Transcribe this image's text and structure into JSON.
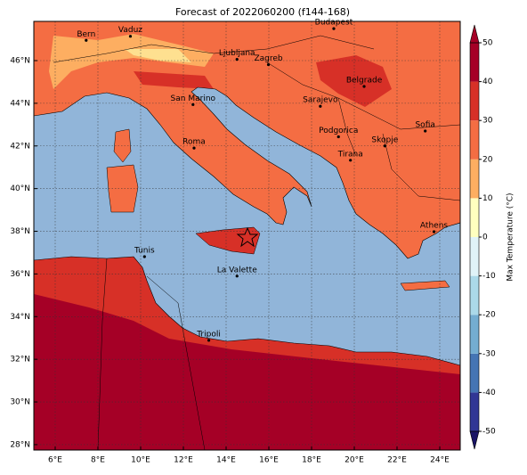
{
  "title": "Forecast of 2022060200 (f144-168)",
  "map": {
    "lon_ticks": [
      {
        "value": 6,
        "label": "6°E"
      },
      {
        "value": 8,
        "label": "8°E"
      },
      {
        "value": 10,
        "label": "10°E"
      },
      {
        "value": 12,
        "label": "12°E"
      },
      {
        "value": 14,
        "label": "14°E"
      },
      {
        "value": 16,
        "label": "16°E"
      },
      {
        "value": 18,
        "label": "18°E"
      },
      {
        "value": 20,
        "label": "20°E"
      },
      {
        "value": 22,
        "label": "22°E"
      },
      {
        "value": 24,
        "label": "24°E"
      }
    ],
    "lat_ticks": [
      {
        "value": 28,
        "label": "28°N"
      },
      {
        "value": 30,
        "label": "30°N"
      },
      {
        "value": 32,
        "label": "32°N"
      },
      {
        "value": 34,
        "label": "34°N"
      },
      {
        "value": 36,
        "label": "36°N"
      },
      {
        "value": 38,
        "label": "38°N"
      },
      {
        "value": 40,
        "label": "40°N"
      },
      {
        "value": 42,
        "label": "42°N"
      },
      {
        "value": 44,
        "label": "44°N"
      },
      {
        "value": 46,
        "label": "46°N"
      }
    ],
    "cities": [
      {
        "name": "Bern",
        "lon": 7.45,
        "lat": 46.95
      },
      {
        "name": "Vaduz",
        "lon": 9.52,
        "lat": 47.14
      },
      {
        "name": "Budapest",
        "lon": 19.04,
        "lat": 47.5
      },
      {
        "name": "Ljubljana",
        "lon": 14.51,
        "lat": 46.06
      },
      {
        "name": "Zagreb",
        "lon": 15.98,
        "lat": 45.81
      },
      {
        "name": "San Marino",
        "lon": 12.45,
        "lat": 43.94
      },
      {
        "name": "Belgrade",
        "lon": 20.46,
        "lat": 44.79
      },
      {
        "name": "Sarajevo",
        "lon": 18.41,
        "lat": 43.86
      },
      {
        "name": "Roma",
        "lon": 12.5,
        "lat": 41.9
      },
      {
        "name": "Podgorica",
        "lon": 19.26,
        "lat": 42.43
      },
      {
        "name": "Skopje",
        "lon": 21.43,
        "lat": 42.0
      },
      {
        "name": "Sofia",
        "lon": 23.32,
        "lat": 42.7
      },
      {
        "name": "Tirana",
        "lon": 19.82,
        "lat": 41.33
      },
      {
        "name": "Athens",
        "lon": 23.73,
        "lat": 37.98
      },
      {
        "name": "Tunis",
        "lon": 10.18,
        "lat": 36.81
      },
      {
        "name": "La Valette",
        "lon": 14.51,
        "lat": 35.9
      },
      {
        "name": "Tripoli",
        "lon": 13.19,
        "lat": 32.89
      }
    ]
  },
  "colorbar": {
    "label": "Max Temperature (°C)",
    "ticks": [
      -50,
      -40,
      -30,
      -20,
      -10,
      0,
      10,
      20,
      30,
      40,
      50
    ],
    "colors": [
      "#313695",
      "#4575b4",
      "#74add1",
      "#abd9e9",
      "#e0f3f8",
      "#ffffbf",
      "#fdae61",
      "#f46d43",
      "#d73027",
      "#a50026"
    ],
    "under_color": "#1a1466",
    "over_color": "#a50026"
  }
}
